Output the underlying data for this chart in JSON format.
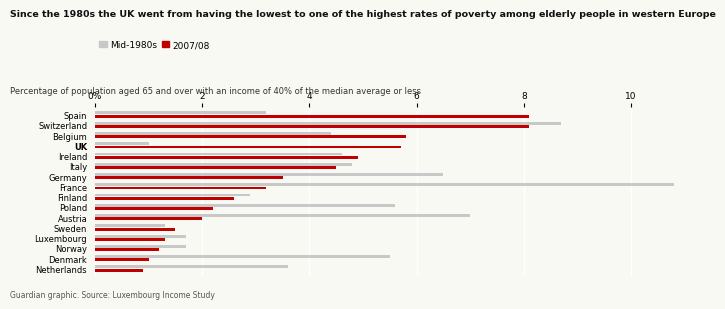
{
  "title": "Since the 1980s the UK went from having the lowest to one of the highest rates of poverty among elderly people in western Europe",
  "subtitle": "Percentage of population aged 65 and over with an income of 40% of the median average or less",
  "footnote": "Guardian graphic. Source: Luxembourg Income Study",
  "legend_mid": "Mid-1980s",
  "legend_new": "2007/08",
  "color_mid": "#c8c8c8",
  "color_new": "#bf0000",
  "countries": [
    "Spain",
    "Switzerland",
    "Belgium",
    "UK",
    "Ireland",
    "Italy",
    "Germany",
    "France",
    "Finland",
    "Poland",
    "Austria",
    "Sweden",
    "Luxembourg",
    "Norway",
    "Denmark",
    "Netherlands"
  ],
  "mid_1980s": [
    3.2,
    8.7,
    4.4,
    1.0,
    4.6,
    4.8,
    6.5,
    10.8,
    2.9,
    5.6,
    7.0,
    1.3,
    1.7,
    1.7,
    5.5,
    3.6
  ],
  "y2007": [
    8.1,
    8.1,
    5.8,
    5.7,
    4.9,
    4.5,
    3.5,
    3.2,
    2.6,
    2.2,
    2.0,
    1.5,
    1.3,
    1.2,
    1.0,
    0.9
  ],
  "xlim": [
    0,
    11
  ],
  "xticks": [
    0,
    2,
    4,
    6,
    8,
    10
  ],
  "xticklabels": [
    "0%",
    "2",
    "4",
    "6",
    "8",
    "10"
  ],
  "background_color": "#f9f9f4",
  "bold_country": "UK"
}
